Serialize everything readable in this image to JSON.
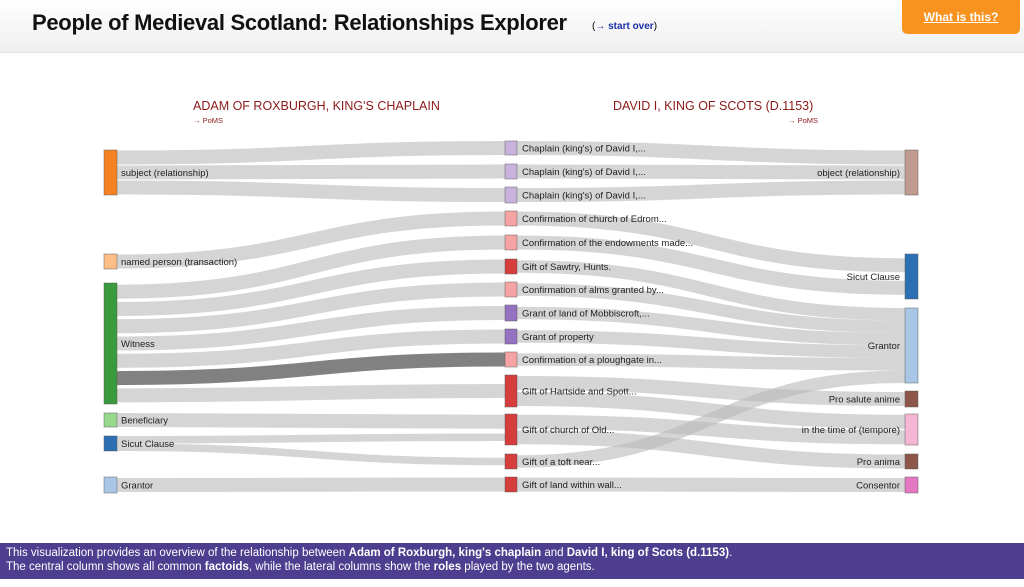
{
  "header": {
    "title": "People of Medieval Scotland: Relationships Explorer",
    "start_over": "→ start over",
    "what_is_this": "What is this?"
  },
  "agents": {
    "left": {
      "name": "ADAM OF ROXBURGH, KING'S CHAPLAIN",
      "link": "→ PoMS"
    },
    "right": {
      "name": "DAVID I, KING OF SCOTS (D.1153)",
      "link": "→ PoMS"
    }
  },
  "nodes": {
    "left": [
      {
        "id": "L_subject",
        "label": "subject (relationship)",
        "color": "#f58220"
      },
      {
        "id": "L_named",
        "label": "named person (transaction)",
        "color": "#fdbf87"
      },
      {
        "id": "L_witness",
        "label": "Witness",
        "color": "#3a9a3e"
      },
      {
        "id": "L_benef",
        "label": "Beneficiary",
        "color": "#98d98c"
      },
      {
        "id": "L_sicut",
        "label": "Sicut Clause",
        "color": "#2d6fb3"
      },
      {
        "id": "L_grantor",
        "label": "Grantor",
        "color": "#a9c6e6"
      }
    ],
    "center": [
      {
        "id": "C1",
        "label": "Chaplain (king's) of David I,...",
        "color": "#c9b3dc"
      },
      {
        "id": "C2",
        "label": "Chaplain (king's) of David I,...",
        "color": "#c9b3dc"
      },
      {
        "id": "C3",
        "label": "Chaplain (king's) of David I,...",
        "color": "#c9b3dc"
      },
      {
        "id": "C4",
        "label": "Confirmation of church of Edrom...",
        "color": "#f6a3a3"
      },
      {
        "id": "C5",
        "label": "Confirmation of the endowments made...",
        "color": "#f6a3a3"
      },
      {
        "id": "C6",
        "label": "Gift of Sawtry, Hunts.",
        "color": "#d63d3d"
      },
      {
        "id": "C7",
        "label": "Confirmation of alms granted by...",
        "color": "#f6a3a3"
      },
      {
        "id": "C8",
        "label": "Grant of land of Mobbiscroft,...",
        "color": "#9471c1"
      },
      {
        "id": "C9",
        "label": "Grant of property",
        "color": "#9471c1"
      },
      {
        "id": "C10",
        "label": "Confirmation of a ploughgate in...",
        "color": "#f6a3a3"
      },
      {
        "id": "C11",
        "label": "Gift of Hartside and Spott...",
        "color": "#d63d3d"
      },
      {
        "id": "C12",
        "label": "Gift of church of Old...",
        "color": "#d63d3d"
      },
      {
        "id": "C13",
        "label": "Gift of a toft near...",
        "color": "#d63d3d"
      },
      {
        "id": "C14",
        "label": "Gift of land within wall...",
        "color": "#d63d3d"
      }
    ],
    "right": [
      {
        "id": "R_object",
        "label": "object (relationship)",
        "color": "#c09a8e"
      },
      {
        "id": "R_sicut",
        "label": "Sicut Clause",
        "color": "#2d6fb3"
      },
      {
        "id": "R_grantor",
        "label": "Grantor",
        "color": "#a9c6e6"
      },
      {
        "id": "R_prosalute",
        "label": "Pro salute anime",
        "color": "#8c564b"
      },
      {
        "id": "R_tempore",
        "label": "in the time of (tempore)",
        "color": "#f4b6d2"
      },
      {
        "id": "R_proanima",
        "label": "Pro anima",
        "color": "#8c564b"
      },
      {
        "id": "R_consentor",
        "label": "Consentor",
        "color": "#e377c2"
      }
    ]
  },
  "links": [
    {
      "source": "L_subject",
      "target": "C1",
      "highlight": false
    },
    {
      "source": "L_subject",
      "target": "C2",
      "highlight": false
    },
    {
      "source": "L_subject",
      "target": "C3",
      "highlight": false
    },
    {
      "source": "L_named",
      "target": "C4",
      "highlight": false
    },
    {
      "source": "L_witness",
      "target": "C5",
      "highlight": false
    },
    {
      "source": "L_witness",
      "target": "C6",
      "highlight": false
    },
    {
      "source": "L_witness",
      "target": "C7",
      "highlight": false
    },
    {
      "source": "L_witness",
      "target": "C8",
      "highlight": false
    },
    {
      "source": "L_witness",
      "target": "C9",
      "highlight": false
    },
    {
      "source": "L_witness",
      "target": "C10",
      "highlight": true
    },
    {
      "source": "L_witness",
      "target": "C11",
      "highlight": false
    },
    {
      "source": "L_benef",
      "target": "C12",
      "highlight": false
    },
    {
      "source": "L_sicut",
      "target": "C12",
      "highlight": false
    },
    {
      "source": "L_sicut",
      "target": "C13",
      "highlight": false
    },
    {
      "source": "L_grantor",
      "target": "C14",
      "highlight": false
    },
    {
      "source": "C1",
      "target": "R_object",
      "highlight": false
    },
    {
      "source": "C2",
      "target": "R_object",
      "highlight": false
    },
    {
      "source": "C3",
      "target": "R_object",
      "highlight": false
    },
    {
      "source": "C4",
      "target": "R_sicut",
      "highlight": false
    },
    {
      "source": "C5",
      "target": "R_sicut",
      "highlight": false
    },
    {
      "source": "C6",
      "target": "R_grantor",
      "highlight": false
    },
    {
      "source": "C7",
      "target": "R_grantor",
      "highlight": false
    },
    {
      "source": "C8",
      "target": "R_grantor",
      "highlight": false
    },
    {
      "source": "C9",
      "target": "R_grantor",
      "highlight": false
    },
    {
      "source": "C10",
      "target": "R_grantor",
      "highlight": false
    },
    {
      "source": "C11",
      "target": "R_prosalute",
      "highlight": false
    },
    {
      "source": "C11",
      "target": "R_tempore",
      "highlight": false
    },
    {
      "source": "C12",
      "target": "R_tempore",
      "highlight": false
    },
    {
      "source": "C12",
      "target": "R_proanima",
      "highlight": false
    },
    {
      "source": "C13",
      "target": "R_grantor",
      "highlight": false
    },
    {
      "source": "C14",
      "target": "R_consentor",
      "highlight": false
    }
  ],
  "footer": {
    "line1_a": "This visualization provides an overview of the relationship between ",
    "line1_b": "Adam of Roxburgh, king's chaplain",
    "line1_c": " and ",
    "line1_d": "David I, king of Scots (d.1153)",
    "line1_e": ".",
    "line2_a": "The central column shows all common ",
    "line2_b": "factoids",
    "line2_c": ", while the lateral columns show the ",
    "line2_d": "roles",
    "line2_e": " played by the two agents."
  }
}
